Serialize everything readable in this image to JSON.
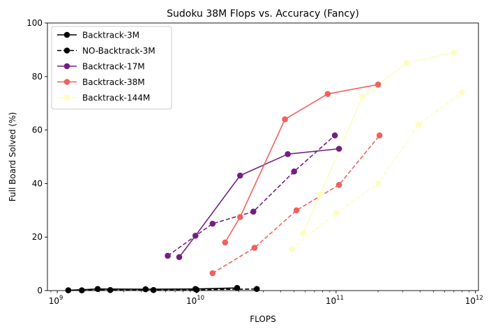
{
  "chart_data": {
    "type": "line",
    "title": "Sudoku 38M Flops vs. Accuracy (Fancy)",
    "xlabel": "FLOPS",
    "ylabel": "Full Board Solved (%)",
    "xscale": "log",
    "xlim": [
      850000000.0,
      1050000000000.0
    ],
    "ylim": [
      0,
      100
    ],
    "x_major_ticks": [
      {
        "value": 1000000000.0,
        "base": "10",
        "exp": "9"
      },
      {
        "value": 10000000000.0,
        "base": "10",
        "exp": "10"
      },
      {
        "value": 100000000000.0,
        "base": "10",
        "exp": "11"
      },
      {
        "value": 1000000000000.0,
        "base": "10",
        "exp": "12"
      }
    ],
    "y_ticks": [
      {
        "value": 0,
        "label": "0"
      },
      {
        "value": 20,
        "label": "20"
      },
      {
        "value": 40,
        "label": "40"
      },
      {
        "value": 60,
        "label": "60"
      },
      {
        "value": 80,
        "label": "80"
      },
      {
        "value": 100,
        "label": "100"
      }
    ],
    "grid": false,
    "legend_position": "top-left",
    "series": [
      {
        "name": "Backtrack-3M",
        "color": "#000000",
        "dashed": false,
        "points": [
          [
            1200000000.0,
            0.1
          ],
          [
            1950000000.0,
            0.6
          ],
          [
            4300000000.0,
            0.5
          ],
          [
            9800000000.0,
            0.6
          ],
          [
            19500000000.0,
            1.0
          ]
        ]
      },
      {
        "name": "NO-Backtrack-3M",
        "color": "#000000",
        "dashed": true,
        "points": [
          [
            1500000000.0,
            0.1
          ],
          [
            2400000000.0,
            0.2
          ],
          [
            4900000000.0,
            0.2
          ],
          [
            10000000000.0,
            0.3
          ],
          [
            27000000000.0,
            0.6
          ]
        ]
      },
      {
        "name": "Backtrack-17M",
        "color": "#721f81",
        "dashed": false,
        "points": [
          [
            7500000000.0,
            12.5
          ],
          [
            9800000000.0,
            20.5
          ],
          [
            20500000000.0,
            43
          ],
          [
            45000000000.0,
            51
          ],
          [
            105000000000.0,
            53
          ]
        ]
      },
      {
        "name": "",
        "color": "#721f81",
        "dashed": true,
        "points": [
          [
            6200000000.0,
            13
          ],
          [
            13000000000.0,
            25
          ],
          [
            25500000000.0,
            29.5
          ],
          [
            50000000000.0,
            44.5
          ],
          [
            98000000000.0,
            58
          ]
        ]
      },
      {
        "name": "Backtrack-38M",
        "color": "#f1605d",
        "dashed": false,
        "points": [
          [
            16000000000.0,
            18
          ],
          [
            20500000000.0,
            27.5
          ],
          [
            43000000000.0,
            64
          ],
          [
            87000000000.0,
            73.5
          ],
          [
            200000000000.0,
            77
          ]
        ]
      },
      {
        "name": "",
        "color": "#f1605d",
        "dashed": true,
        "points": [
          [
            13000000000.0,
            6.5
          ],
          [
            26000000000.0,
            16
          ],
          [
            52000000000.0,
            30
          ],
          [
            105000000000.0,
            39.5
          ],
          [
            205000000000.0,
            58
          ]
        ]
      },
      {
        "name": "Backtrack-144M",
        "color": "#fcfdbf",
        "dashed": false,
        "points": [
          [
            58000000000.0,
            21.5
          ],
          [
            77000000000.0,
            36
          ],
          [
            155000000000.0,
            72.5
          ],
          [
            320000000000.0,
            85
          ],
          [
            700000000000.0,
            89
          ]
        ]
      },
      {
        "name": "",
        "color": "#fcfdbf",
        "dashed": true,
        "points": [
          [
            48000000000.0,
            15.5
          ],
          [
            100000000000.0,
            29
          ],
          [
            200000000000.0,
            40
          ],
          [
            390000000000.0,
            62
          ],
          [
            800000000000.0,
            74
          ]
        ]
      }
    ]
  }
}
